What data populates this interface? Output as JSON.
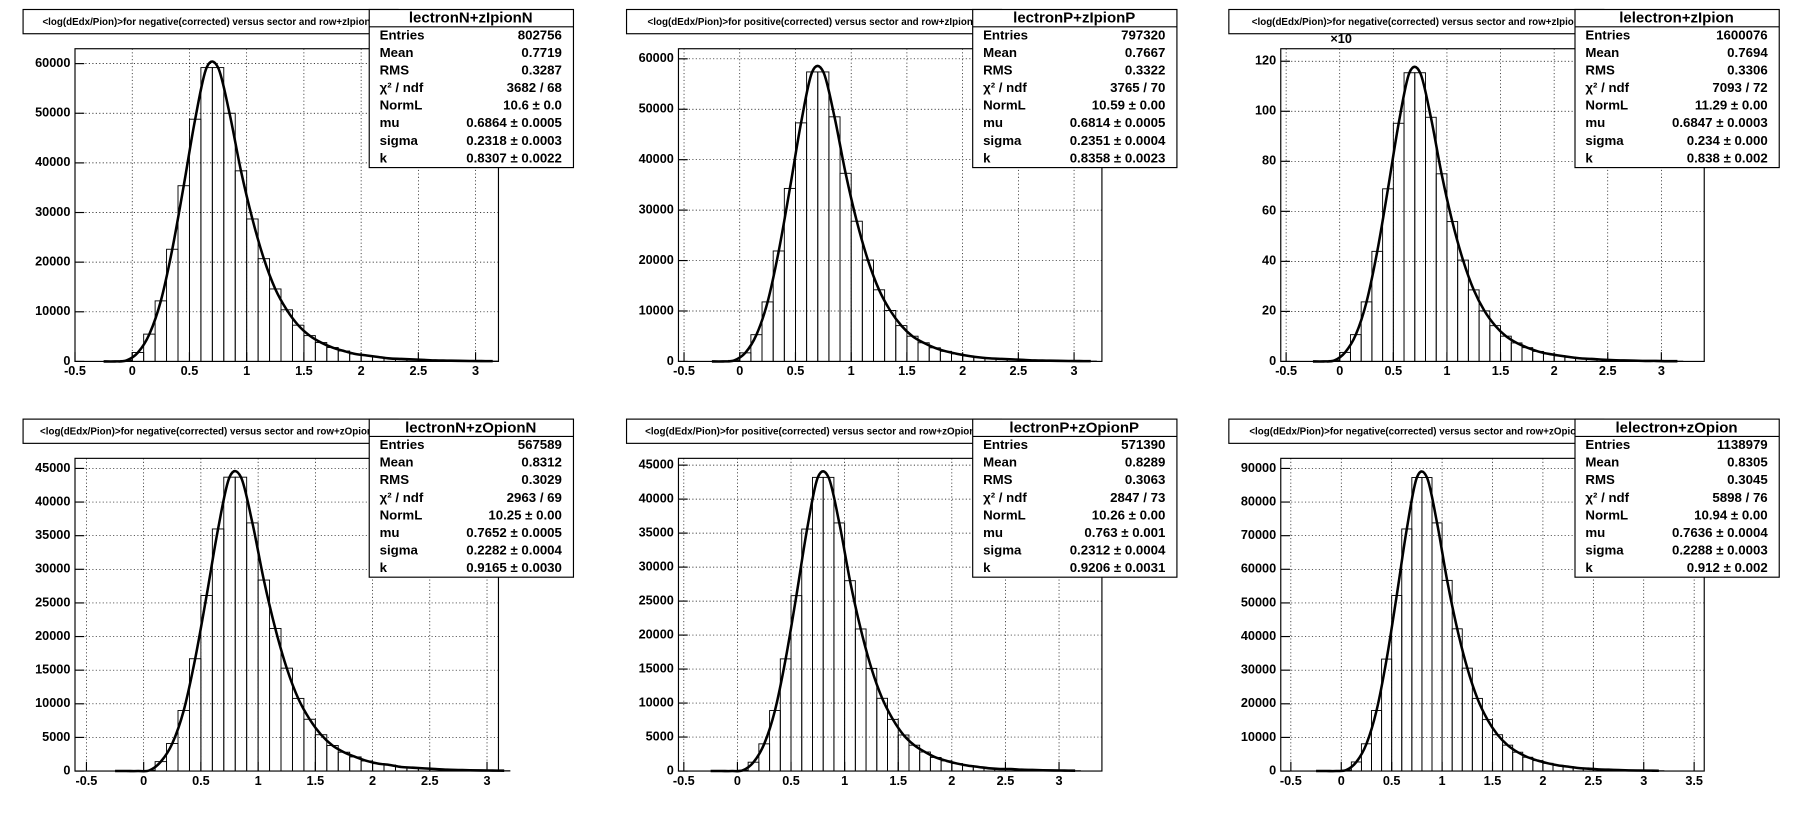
{
  "chart_data": [
    {
      "type": "histogram",
      "title": "<log(dEdx/Pion)>for negative(corrected) versus sector and row+zIpionN",
      "stats": {
        "title": "lectronN+zIpionN",
        "rows": [
          [
            "Entries",
            "802756"
          ],
          [
            "Mean",
            "0.7719"
          ],
          [
            "RMS",
            "0.3287"
          ],
          [
            "χ² / ndf",
            "3682 / 68"
          ],
          [
            "NormL",
            "10.6 ± 0.0"
          ],
          [
            "mu",
            "0.6864 ± 0.0005"
          ],
          [
            "sigma",
            "0.2318 ± 0.0003"
          ],
          [
            "k",
            "0.8307 ± 0.0022"
          ]
        ]
      },
      "xlim": [
        -0.5,
        3.2
      ],
      "xticks": [
        -0.5,
        0,
        0.5,
        1,
        1.5,
        2,
        2.5,
        3
      ],
      "ylim": [
        0,
        63000
      ],
      "yticks": [
        0,
        10000,
        20000,
        30000,
        40000,
        50000,
        60000
      ],
      "grid": true,
      "bins": [
        -0.3,
        -0.2,
        -0.1,
        0,
        0.1,
        0.2,
        0.3,
        0.4,
        0.5,
        0.6,
        0.7,
        0.8,
        0.9,
        1,
        1.1,
        1.2,
        1.3,
        1.4,
        1.5,
        1.6,
        1.7,
        1.8,
        1.9,
        2,
        2.1,
        2.2,
        2.3,
        2.4,
        2.5,
        2.6,
        2.7,
        2.8,
        2.9,
        3,
        3.1,
        3.2
      ],
      "counts": [
        0,
        0,
        200,
        1800,
        5500,
        12200,
        22600,
        35400,
        48800,
        59200,
        59200,
        50000,
        38400,
        28700,
        20700,
        14600,
        10400,
        7300,
        5200,
        3800,
        2800,
        2100,
        1500,
        1200,
        900,
        600,
        500,
        400,
        300,
        200,
        160,
        120,
        90,
        70,
        60
      ]
    },
    {
      "type": "histogram",
      "title": "<log(dEdx/Pion)>for positive(corrected) versus sector and row+zIpionP",
      "stats": {
        "title": "lectronP+zIpionP",
        "rows": [
          [
            "Entries",
            "797320"
          ],
          [
            "Mean",
            "0.7667"
          ],
          [
            "RMS",
            "0.3322"
          ],
          [
            "χ² / ndf",
            "3765 / 70"
          ],
          [
            "NormL",
            "10.59 ± 0.00"
          ],
          [
            "mu",
            "0.6814 ± 0.0005"
          ],
          [
            "sigma",
            "0.2351 ± 0.0004"
          ],
          [
            "k",
            "0.8358 ± 0.0023"
          ]
        ]
      },
      "xlim": [
        -0.55,
        3.25
      ],
      "xticks": [
        -0.5,
        0,
        0.5,
        1,
        1.5,
        2,
        2.5,
        3
      ],
      "ylim": [
        0,
        62000
      ],
      "yticks": [
        0,
        10000,
        20000,
        30000,
        40000,
        50000,
        60000
      ],
      "grid": true,
      "bins": [
        -0.3,
        -0.2,
        -0.1,
        0,
        0.1,
        0.2,
        0.3,
        0.4,
        0.5,
        0.6,
        0.7,
        0.8,
        0.9,
        1,
        1.1,
        1.2,
        1.3,
        1.4,
        1.5,
        1.6,
        1.7,
        1.8,
        1.9,
        2,
        2.1,
        2.2,
        2.3,
        2.4,
        2.5,
        2.6,
        2.7,
        2.8,
        2.9,
        3,
        3.1,
        3.2
      ],
      "counts": [
        0,
        0,
        200,
        1700,
        5300,
        11800,
        21900,
        34300,
        47300,
        57400,
        57400,
        48500,
        37300,
        27800,
        20100,
        14200,
        10100,
        7100,
        5000,
        3700,
        2700,
        2000,
        1500,
        1100,
        800,
        600,
        500,
        400,
        300,
        200,
        160,
        120,
        90,
        70,
        60
      ]
    },
    {
      "type": "histogram",
      "title": "<log(dEdx/Pion)>for negative(corrected) versus sector and row+zIpion",
      "y_multiplier": "×10",
      "stats": {
        "title": "lelectron+zIpion",
        "rows": [
          [
            "Entries",
            "1600076"
          ],
          [
            "Mean",
            "0.7694"
          ],
          [
            "RMS",
            "0.3306"
          ],
          [
            "χ² / ndf",
            "7093 / 72"
          ],
          [
            "NormL",
            "11.29 ± 0.00"
          ],
          [
            "mu",
            "0.6847 ± 0.0003"
          ],
          [
            "sigma",
            "0.234 ± 0.000"
          ],
          [
            "k",
            "0.838 ± 0.002"
          ]
        ]
      },
      "xlim": [
        -0.55,
        3.4
      ],
      "xticks": [
        -0.5,
        0,
        0.5,
        1,
        1.5,
        2,
        2.5,
        3
      ],
      "ylim": [
        0,
        125
      ],
      "yticks": [
        0,
        20,
        40,
        60,
        80,
        100,
        120
      ],
      "grid": true,
      "bins": [
        -0.3,
        -0.2,
        -0.1,
        0,
        0.1,
        0.2,
        0.3,
        0.4,
        0.5,
        0.6,
        0.7,
        0.8,
        0.9,
        1,
        1.1,
        1.2,
        1.3,
        1.4,
        1.5,
        1.6,
        1.7,
        1.8,
        1.9,
        2,
        2.1,
        2.2,
        2.3,
        2.4,
        2.5,
        2.6,
        2.7,
        2.8,
        2.9,
        3,
        3.1,
        3.2
      ],
      "counts": [
        0,
        0,
        0.4,
        3.6,
        10.7,
        23.8,
        44,
        69,
        95.2,
        115.4,
        115.4,
        97.6,
        75,
        55.9,
        40.5,
        28.6,
        20.2,
        14.3,
        10.1,
        7.4,
        5.5,
        4,
        3,
        2.3,
        1.7,
        1.2,
        1,
        0.7,
        0.5,
        0.4,
        0.3,
        0.2,
        0.2,
        0.1,
        0.1
      ]
    },
    {
      "type": "histogram",
      "title": "<log(dEdx/Pion)>for negative(corrected) versus sector and row+zOpionN",
      "stats": {
        "title": "lectronN+zOpionN",
        "rows": [
          [
            "Entries",
            "567589"
          ],
          [
            "Mean",
            "0.8312"
          ],
          [
            "RMS",
            "0.3029"
          ],
          [
            "χ² / ndf",
            "2963 / 69"
          ],
          [
            "NormL",
            "10.25 ± 0.00"
          ],
          [
            "mu",
            "0.7652 ± 0.0005"
          ],
          [
            "sigma",
            "0.2282 ± 0.0004"
          ],
          [
            "k",
            "0.9165 ± 0.0030"
          ]
        ]
      },
      "xlim": [
        -0.6,
        3.1
      ],
      "xticks": [
        -0.5,
        0,
        0.5,
        1,
        1.5,
        2,
        2.5,
        3
      ],
      "ylim": [
        0,
        46500
      ],
      "yticks": [
        0,
        5000,
        10000,
        15000,
        20000,
        25000,
        30000,
        35000,
        40000,
        45000
      ],
      "grid": true,
      "bins": [
        -0.3,
        -0.2,
        -0.1,
        0,
        0.1,
        0.2,
        0.3,
        0.4,
        0.5,
        0.6,
        0.7,
        0.8,
        0.9,
        1,
        1.1,
        1.2,
        1.3,
        1.4,
        1.5,
        1.6,
        1.7,
        1.8,
        1.9,
        2,
        2.1,
        2.2,
        2.3,
        2.4,
        2.5,
        2.6,
        2.7,
        2.8,
        2.9,
        3,
        3.1,
        3.2
      ],
      "counts": [
        0,
        0,
        0,
        100,
        1400,
        4100,
        9000,
        16700,
        26100,
        36000,
        43700,
        43700,
        36900,
        28400,
        21200,
        15300,
        10800,
        7700,
        5400,
        3800,
        2800,
        2100,
        1500,
        1100,
        900,
        600,
        500,
        400,
        300,
        200,
        160,
        120,
        90,
        70,
        50
      ]
    },
    {
      "type": "histogram",
      "title": "<log(dEdx/Pion)>for positive(corrected) versus sector and row+zOpionP",
      "stats": {
        "title": "lectronP+zOpionP",
        "rows": [
          [
            "Entries",
            "571390"
          ],
          [
            "Mean",
            "0.8289"
          ],
          [
            "RMS",
            "0.3063"
          ],
          [
            "χ² / ndf",
            "2847 / 73"
          ],
          [
            "NormL",
            "10.26 ± 0.00"
          ],
          [
            "mu",
            "0.763 ± 0.001"
          ],
          [
            "sigma",
            "0.2312 ± 0.0004"
          ],
          [
            "k",
            "0.9206 ± 0.0031"
          ]
        ]
      },
      "xlim": [
        -0.55,
        3.4
      ],
      "xticks": [
        -0.5,
        0,
        0.5,
        1,
        1.5,
        2,
        2.5,
        3
      ],
      "ylim": [
        0,
        46000
      ],
      "yticks": [
        0,
        5000,
        10000,
        15000,
        20000,
        25000,
        30000,
        35000,
        40000,
        45000
      ],
      "grid": true,
      "bins": [
        -0.3,
        -0.2,
        -0.1,
        0,
        0.1,
        0.2,
        0.3,
        0.4,
        0.5,
        0.6,
        0.7,
        0.8,
        0.9,
        1,
        1.1,
        1.2,
        1.3,
        1.4,
        1.5,
        1.6,
        1.7,
        1.8,
        1.9,
        2,
        2.1,
        2.2,
        2.3,
        2.4,
        2.5,
        2.6,
        2.7,
        2.8,
        2.9,
        3,
        3.1,
        3.2
      ],
      "counts": [
        0,
        0,
        0,
        100,
        1300,
        4000,
        8900,
        16500,
        25800,
        35600,
        43200,
        43200,
        36500,
        28000,
        20900,
        15100,
        10700,
        7600,
        5300,
        3800,
        2800,
        2000,
        1500,
        1100,
        800,
        600,
        400,
        300,
        300,
        200,
        160,
        120,
        90,
        70,
        50
      ]
    },
    {
      "type": "histogram",
      "title": "<log(dEdx/Pion)>for negative(corrected) versus sector and row+zOpion",
      "stats": {
        "title": "lelectron+zOpion",
        "rows": [
          [
            "Entries",
            "1138979"
          ],
          [
            "Mean",
            "0.8305"
          ],
          [
            "RMS",
            "0.3045"
          ],
          [
            "χ² / ndf",
            "5898 / 76"
          ],
          [
            "NormL",
            "10.94 ± 0.00"
          ],
          [
            "mu",
            "0.7636 ± 0.0004"
          ],
          [
            "sigma",
            "0.2288 ± 0.0003"
          ],
          [
            "k",
            "0.912 ± 0.002"
          ]
        ]
      },
      "xlim": [
        -0.6,
        3.6
      ],
      "xticks": [
        -0.5,
        0,
        0.5,
        1,
        1.5,
        2,
        2.5,
        3,
        3.5
      ],
      "ylim": [
        0,
        93000
      ],
      "yticks": [
        0,
        10000,
        20000,
        30000,
        40000,
        50000,
        60000,
        70000,
        80000,
        90000
      ],
      "grid": true,
      "bins": [
        -0.3,
        -0.2,
        -0.1,
        0,
        0.1,
        0.2,
        0.3,
        0.4,
        0.5,
        0.6,
        0.7,
        0.8,
        0.9,
        1,
        1.1,
        1.2,
        1.3,
        1.4,
        1.5,
        1.6,
        1.7,
        1.8,
        1.9,
        2,
        2.1,
        2.2,
        2.3,
        2.4,
        2.5,
        2.6,
        2.7,
        2.8,
        2.9,
        3,
        3.1,
        3.2
      ],
      "counts": [
        0,
        0,
        0,
        300,
        2700,
        8100,
        18000,
        33300,
        52200,
        72000,
        87300,
        87300,
        73800,
        56700,
        42300,
        30600,
        21600,
        15300,
        10800,
        7700,
        5600,
        4100,
        3100,
        2300,
        1700,
        1300,
        900,
        700,
        500,
        400,
        300,
        200,
        150,
        120,
        90
      ]
    }
  ]
}
